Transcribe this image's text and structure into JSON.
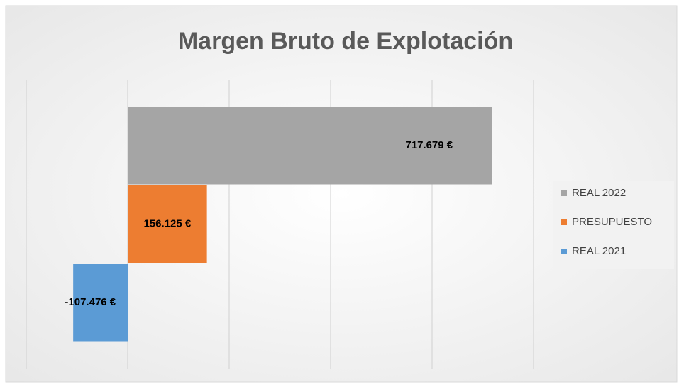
{
  "chart_data": {
    "type": "bar",
    "orientation": "horizontal",
    "title": "Margen Bruto de Explotación",
    "series": [
      {
        "name": "REAL 2022",
        "color": "#a5a5a5",
        "values": [
          717679
        ],
        "value_labels": [
          "717.679 €"
        ]
      },
      {
        "name": "PRESUPUESTO",
        "color": "#ed7d31",
        "values": [
          156125
        ],
        "value_labels": [
          "156.125 €"
        ]
      },
      {
        "name": "REAL 2021",
        "color": "#5b9bd5",
        "values": [
          -107476
        ],
        "value_labels": [
          "-107.476 €"
        ]
      }
    ],
    "xlim": [
      -200000,
      800000
    ],
    "xticks": [
      -200000,
      0,
      200000,
      400000,
      600000,
      800000
    ],
    "grid": true,
    "legend": "right"
  }
}
